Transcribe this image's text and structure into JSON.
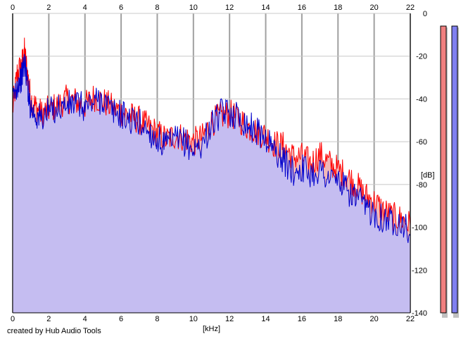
{
  "credit": "created by Hub Audio Tools",
  "chart_data": {
    "type": "area",
    "xlabel": "[kHz]",
    "ylabel": "[dB]",
    "xlim": [
      0,
      22
    ],
    "ylim": [
      -140,
      0
    ],
    "x_ticks": [
      "0",
      "2",
      "4",
      "6",
      "8",
      "10",
      "12",
      "14",
      "16",
      "18",
      "20",
      "22"
    ],
    "y_ticks": [
      "0",
      "-20",
      "-40",
      "-60",
      "-80",
      "-100",
      "-120",
      "-140"
    ],
    "grid": true,
    "series": [
      {
        "color": "#ff0000",
        "fill": "#f2b8b8",
        "x": [
          0,
          0.25,
          0.5,
          0.65,
          0.8,
          1,
          1.3,
          1.6,
          2,
          2.5,
          3,
          3.5,
          4,
          4.5,
          5,
          5.5,
          6,
          6.5,
          7,
          7.5,
          8,
          8.5,
          9,
          9.5,
          10,
          10.5,
          11,
          11.5,
          12,
          12.5,
          13,
          13.5,
          14,
          14.5,
          15,
          15.5,
          16,
          16.5,
          17,
          17.5,
          18,
          18.5,
          19,
          19.5,
          20,
          20.5,
          21,
          21.5,
          22
        ],
        "y": [
          -45,
          -28,
          -24,
          -18,
          -27,
          -40,
          -44,
          -47,
          -45,
          -43,
          -40,
          -41,
          -43,
          -39,
          -41,
          -44,
          -46,
          -48,
          -50,
          -53,
          -56,
          -59,
          -57,
          -58,
          -60,
          -58,
          -51,
          -48,
          -47,
          -49,
          -53,
          -55,
          -57,
          -61,
          -62,
          -67,
          -67,
          -70,
          -66,
          -70,
          -73,
          -76,
          -80,
          -85,
          -88,
          -92,
          -95,
          -96,
          -99
        ]
      },
      {
        "color": "#0000cc",
        "fill": "#bdbdfa",
        "x": [
          0,
          0.25,
          0.5,
          0.65,
          0.8,
          1,
          1.3,
          1.6,
          2,
          2.5,
          3,
          3.5,
          4,
          4.5,
          5,
          5.5,
          6,
          6.5,
          7,
          7.5,
          8,
          8.5,
          9,
          9.5,
          10,
          10.5,
          11,
          11.5,
          12,
          12.5,
          13,
          13.5,
          14,
          14.5,
          15,
          15.5,
          16,
          16.5,
          17,
          17.5,
          18,
          18.5,
          19,
          19.5,
          20,
          20.5,
          21,
          21.5,
          22
        ],
        "y": [
          -40,
          -33,
          -30,
          -22,
          -32,
          -44,
          -48,
          -49,
          -46,
          -44,
          -43,
          -42,
          -44,
          -41,
          -40,
          -46,
          -47,
          -50,
          -51,
          -55,
          -59,
          -62,
          -59,
          -60,
          -64,
          -61,
          -52,
          -47,
          -46,
          -48,
          -52,
          -55,
          -58,
          -64,
          -69,
          -74,
          -72,
          -75,
          -73,
          -77,
          -78,
          -83,
          -86,
          -91,
          -93,
          -96,
          -97,
          -97,
          -104
        ]
      }
    ],
    "level_bars": [
      {
        "color": "#f08080",
        "level_db": -4
      },
      {
        "color": "#8080f0",
        "level_db": -5
      }
    ]
  }
}
